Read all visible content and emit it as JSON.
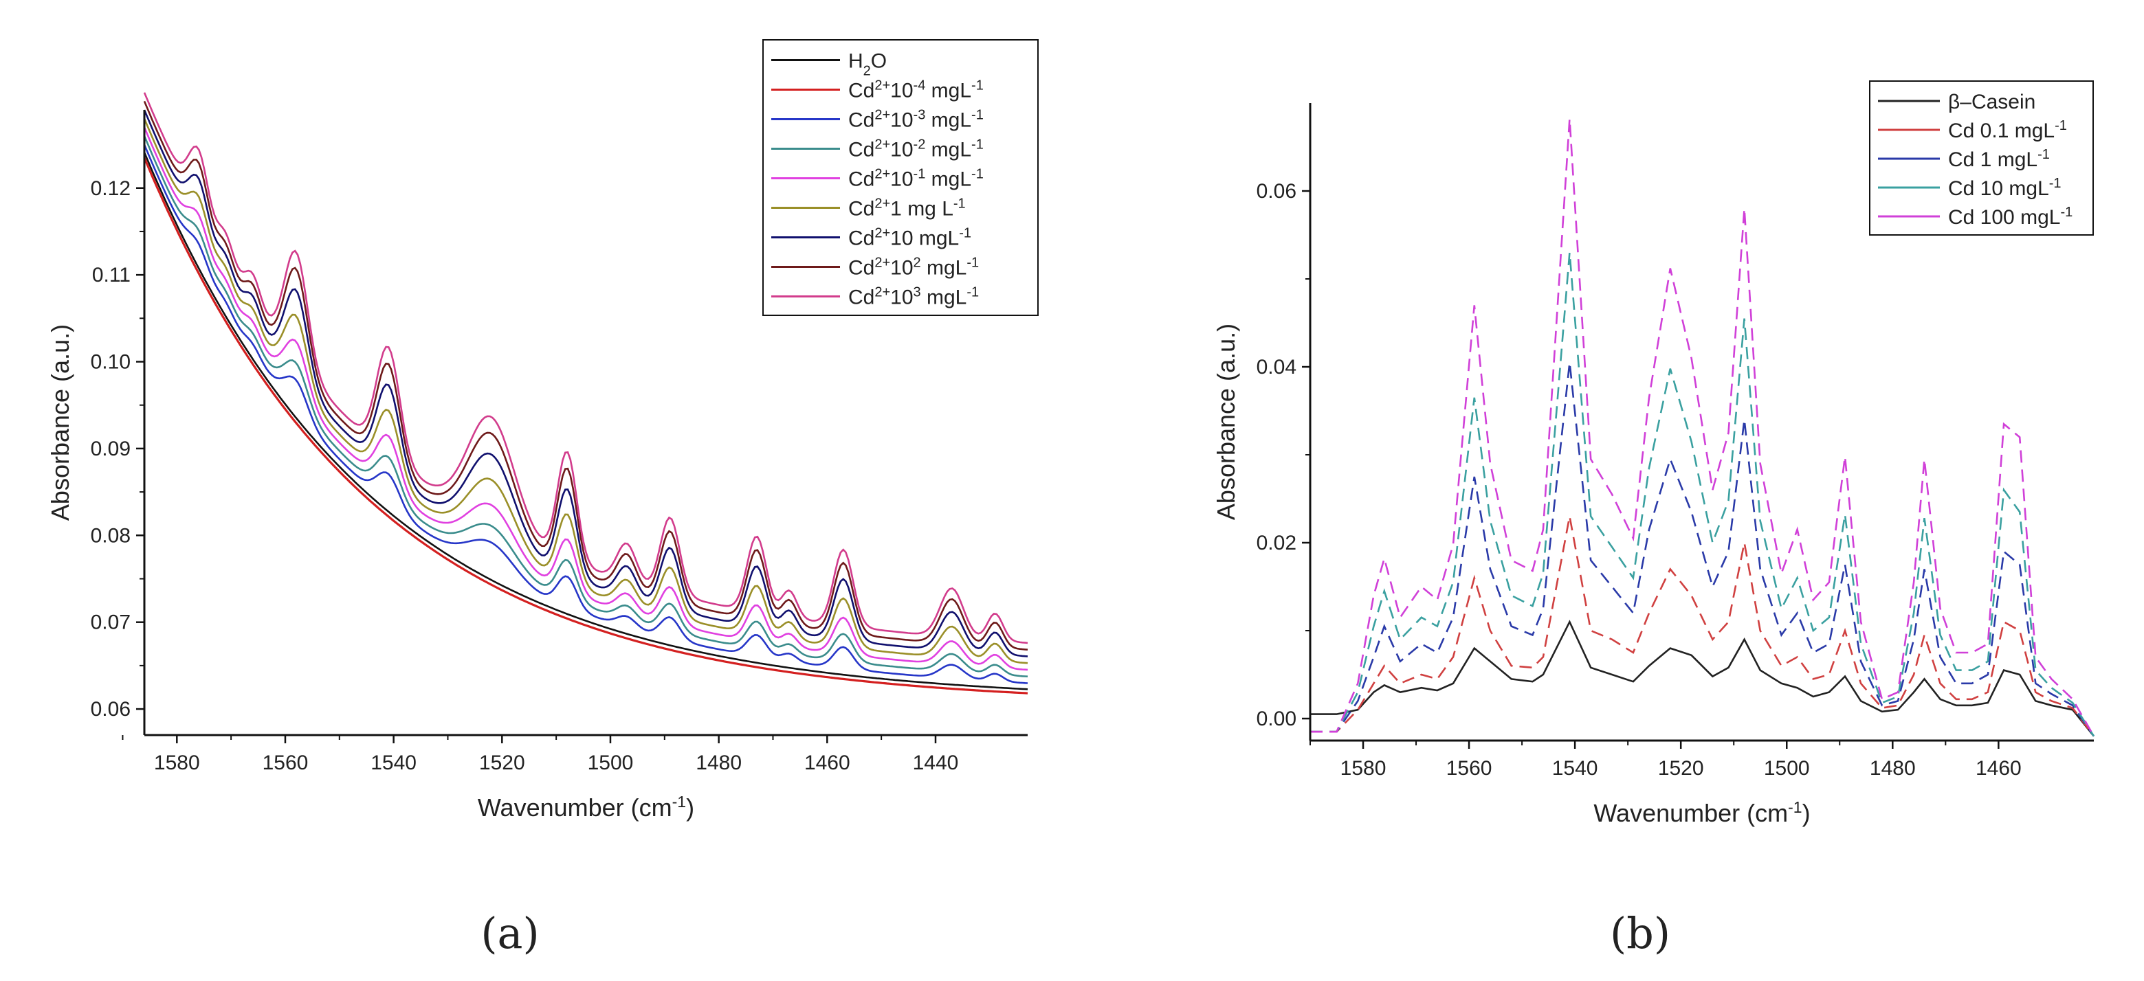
{
  "figure": {
    "panel_labels": [
      "(a)",
      "(b)"
    ]
  },
  "chart_data": [
    {
      "type": "line",
      "panel": "a",
      "xlabel": "Wavenumber (cm",
      "xlabel_sup": "-1",
      "xlabel_tail": ")",
      "ylabel": "Absorbance (a.u.)",
      "xlim": [
        1586,
        1423
      ],
      "ylim": [
        0.057,
        0.129
      ],
      "xticks": [
        1580,
        1560,
        1540,
        1520,
        1500,
        1480,
        1460,
        1440
      ],
      "yticks": [
        0.06,
        0.07,
        0.08,
        0.09,
        0.1,
        0.11,
        0.12
      ],
      "ytick_labels": [
        "0.06",
        "0.07",
        "0.08",
        "0.09",
        "0.10",
        "0.11",
        "0.12"
      ],
      "baseline": {
        "start": 0.1235,
        "end": 0.0605,
        "curvature": 1.7
      },
      "peak_positions": [
        1576,
        1571,
        1566,
        1558,
        1541,
        1522,
        1508,
        1497,
        1489,
        1473,
        1467,
        1457,
        1437,
        1429
      ],
      "peak_shapes": [
        0.55,
        0.22,
        0.25,
        1.0,
        1.0,
        1.0,
        1.0,
        0.35,
        0.7,
        0.7,
        0.25,
        0.7,
        0.45,
        0.25
      ],
      "peak_widths": [
        2.5,
        2,
        2,
        3,
        3,
        6,
        2.5,
        2.5,
        2.5,
        2.5,
        2,
        2.5,
        3,
        2
      ],
      "legend_position": "top-right",
      "series": [
        {
          "name": "H2O",
          "label_parts": [
            [
              "H",
              ""
            ],
            [
              "2",
              "sub"
            ],
            [
              "O",
              ""
            ]
          ],
          "color": "#111111",
          "offset": 0.0006,
          "scale": 0.0
        },
        {
          "name": "Cd2+10-4 mgL-1",
          "label_parts": [
            [
              "Cd",
              ""
            ],
            [
              "2+",
              "sup"
            ],
            [
              "10",
              ""
            ],
            [
              "-4",
              "sup"
            ],
            [
              " mgL",
              ""
            ],
            [
              "-1",
              "sup"
            ]
          ],
          "color": "#d42020",
          "offset": 0.0,
          "scale": 0.0
        },
        {
          "name": "Cd2+10-3 mgL-1",
          "label_parts": [
            [
              "Cd",
              ""
            ],
            [
              "2+",
              "sup"
            ],
            [
              "10",
              ""
            ],
            [
              "-3",
              "sup"
            ],
            [
              " mgL",
              ""
            ],
            [
              "-1",
              "sup"
            ]
          ],
          "color": "#2636c8",
          "offset": 0.0015,
          "scale": 0.0035
        },
        {
          "name": "Cd2+10-2 mgL-1",
          "label_parts": [
            [
              "Cd",
              ""
            ],
            [
              "2+",
              "sup"
            ],
            [
              "10",
              ""
            ],
            [
              "-2",
              "sup"
            ],
            [
              " mgL",
              ""
            ],
            [
              "-1",
              "sup"
            ]
          ],
          "color": "#3a8c8c",
          "offset": 0.0025,
          "scale": 0.0045
        },
        {
          "name": "Cd2+10-1 mgL-1",
          "label_parts": [
            [
              "Cd",
              ""
            ],
            [
              "2+",
              "sup"
            ],
            [
              "10",
              ""
            ],
            [
              "-1",
              "sup"
            ],
            [
              " mgL",
              ""
            ],
            [
              "-1",
              "sup"
            ]
          ],
          "color": "#e040e0",
          "offset": 0.0035,
          "scale": 0.006
        },
        {
          "name": "Cd2+1 mg L-1",
          "label_parts": [
            [
              "Cd",
              ""
            ],
            [
              "2+",
              "sup"
            ],
            [
              "1 mg L",
              ""
            ],
            [
              "-1",
              "sup"
            ]
          ],
          "color": "#9a8f28",
          "offset": 0.0045,
          "scale": 0.008
        },
        {
          "name": "Cd2+10 mgL-1",
          "label_parts": [
            [
              "Cd",
              ""
            ],
            [
              "2+",
              "sup"
            ],
            [
              "10 mgL",
              ""
            ],
            [
              "-1",
              "sup"
            ]
          ],
          "color": "#10106e",
          "offset": 0.0055,
          "scale": 0.01
        },
        {
          "name": "Cd2+102 mgL-1",
          "label_parts": [
            [
              "Cd",
              ""
            ],
            [
              "2+",
              "sup"
            ],
            [
              "10",
              ""
            ],
            [
              "2",
              "sup"
            ],
            [
              " mgL",
              ""
            ],
            [
              "-1",
              "sup"
            ]
          ],
          "color": "#6e1a1a",
          "offset": 0.0065,
          "scale": 0.0115
        },
        {
          "name": "Cd2+103 mgL-1",
          "label_parts": [
            [
              "Cd",
              ""
            ],
            [
              "2+",
              "sup"
            ],
            [
              "10",
              ""
            ],
            [
              "3",
              "sup"
            ],
            [
              " mgL",
              ""
            ],
            [
              "-1",
              "sup"
            ]
          ],
          "color": "#d23c8c",
          "offset": 0.0075,
          "scale": 0.0125
        }
      ]
    },
    {
      "type": "line",
      "panel": "b",
      "xlabel": "Wavenumber (cm",
      "xlabel_sup": "-1",
      "xlabel_tail": ")",
      "ylabel": "Absorbance (a.u.)",
      "xlim": [
        1590,
        1442
      ],
      "ylim": [
        -0.0025,
        0.07
      ],
      "xticks": [
        1580,
        1560,
        1540,
        1520,
        1500,
        1480,
        1460
      ],
      "yticks": [
        0.0,
        0.02,
        0.04,
        0.06
      ],
      "ytick_labels": [
        "0.00",
        "0.02",
        "0.04",
        "0.06"
      ],
      "legend_position": "top-right",
      "x": [
        1590,
        1585,
        1581,
        1578,
        1576,
        1573,
        1569,
        1566,
        1563,
        1559,
        1556,
        1552,
        1548,
        1546,
        1541,
        1537,
        1533,
        1529,
        1526,
        1522,
        1518,
        1514,
        1511,
        1508,
        1505,
        1501,
        1498,
        1495,
        1492,
        1489,
        1486,
        1482,
        1479,
        1476,
        1474,
        1471,
        1468,
        1465,
        1462,
        1459,
        1456,
        1453,
        1450,
        1446,
        1442
      ],
      "series": [
        {
          "name": "β–Casein",
          "label_parts": [
            [
              "β–Casein",
              ""
            ]
          ],
          "color": "#222222",
          "dash": "none",
          "values": [
            0.0005,
            0.0005,
            0.001,
            0.003,
            0.0038,
            0.003,
            0.0035,
            0.0032,
            0.004,
            0.008,
            0.0065,
            0.0045,
            0.0042,
            0.005,
            0.011,
            0.0058,
            0.005,
            0.0042,
            0.006,
            0.008,
            0.0072,
            0.0048,
            0.0058,
            0.009,
            0.0055,
            0.004,
            0.0035,
            0.0025,
            0.003,
            0.0048,
            0.002,
            0.0008,
            0.001,
            0.003,
            0.0045,
            0.0022,
            0.0015,
            0.0015,
            0.0018,
            0.0055,
            0.005,
            0.002,
            0.0015,
            0.001,
            -0.002
          ]
        },
        {
          "name": "Cd 0.1 mgL-1",
          "label_parts": [
            [
              " Cd 0.1 mgL",
              ""
            ],
            [
              "-1",
              "sup"
            ]
          ],
          "color": "#d04040",
          "dash": "18,10",
          "values": [
            -0.0015,
            -0.0015,
            0.001,
            0.004,
            0.006,
            0.004,
            0.005,
            0.0045,
            0.007,
            0.016,
            0.01,
            0.006,
            0.0058,
            0.007,
            0.023,
            0.01,
            0.009,
            0.0075,
            0.012,
            0.017,
            0.014,
            0.009,
            0.011,
            0.02,
            0.01,
            0.006,
            0.007,
            0.0045,
            0.005,
            0.01,
            0.004,
            0.0012,
            0.0015,
            0.005,
            0.0095,
            0.004,
            0.0022,
            0.0022,
            0.003,
            0.011,
            0.01,
            0.003,
            0.002,
            0.0012,
            -0.002
          ]
        },
        {
          "name": "Cd 1 mgL-1",
          "label_parts": [
            [
              "Cd 1 mgL",
              ""
            ],
            [
              "-1",
              "sup"
            ]
          ],
          "color": "#2a3aa8",
          "dash": "18,10",
          "values": [
            -0.0015,
            -0.0015,
            0.002,
            0.007,
            0.0105,
            0.0065,
            0.0085,
            0.0075,
            0.0115,
            0.0275,
            0.017,
            0.0105,
            0.0095,
            0.0125,
            0.0405,
            0.018,
            0.015,
            0.012,
            0.0215,
            0.0295,
            0.0235,
            0.015,
            0.019,
            0.034,
            0.017,
            0.0095,
            0.012,
            0.0075,
            0.0085,
            0.0175,
            0.0065,
            0.0015,
            0.002,
            0.009,
            0.017,
            0.007,
            0.004,
            0.004,
            0.005,
            0.019,
            0.0175,
            0.004,
            0.0028,
            0.0015,
            -0.002
          ]
        },
        {
          "name": "Cd 10 mgL-1",
          "label_parts": [
            [
              "Cd 10 mgL",
              ""
            ],
            [
              "-1",
              "sup"
            ]
          ],
          "color": "#3aa0a0",
          "dash": "18,10",
          "values": [
            -0.0015,
            -0.0015,
            0.003,
            0.0105,
            0.0145,
            0.009,
            0.0115,
            0.0105,
            0.0155,
            0.0365,
            0.0225,
            0.014,
            0.0128,
            0.0165,
            0.053,
            0.023,
            0.0195,
            0.016,
            0.0285,
            0.0398,
            0.0315,
            0.02,
            0.0248,
            0.0455,
            0.0225,
            0.0125,
            0.016,
            0.01,
            0.0115,
            0.0232,
            0.0085,
            0.0018,
            0.0025,
            0.012,
            0.0228,
            0.0095,
            0.0055,
            0.0055,
            0.0065,
            0.026,
            0.0235,
            0.0055,
            0.0035,
            0.0018,
            -0.002
          ]
        },
        {
          "name": "Cd 100 mgL-1",
          "label_parts": [
            [
              "Cd 100 mgL",
              ""
            ],
            [
              "-1",
              "sup"
            ]
          ],
          "color": "#d040d8",
          "dash": "18,10",
          "values": [
            -0.0015,
            -0.0015,
            0.004,
            0.014,
            0.0182,
            0.0115,
            0.015,
            0.0135,
            0.0198,
            0.047,
            0.029,
            0.018,
            0.0168,
            0.0215,
            0.0682,
            0.0295,
            0.0255,
            0.0205,
            0.0365,
            0.0512,
            0.041,
            0.026,
            0.0325,
            0.058,
            0.029,
            0.0165,
            0.0215,
            0.0135,
            0.0155,
            0.0298,
            0.011,
            0.0022,
            0.003,
            0.0155,
            0.0295,
            0.0125,
            0.0075,
            0.0075,
            0.0085,
            0.0335,
            0.032,
            0.007,
            0.0045,
            0.0022,
            -0.002
          ]
        }
      ]
    }
  ]
}
